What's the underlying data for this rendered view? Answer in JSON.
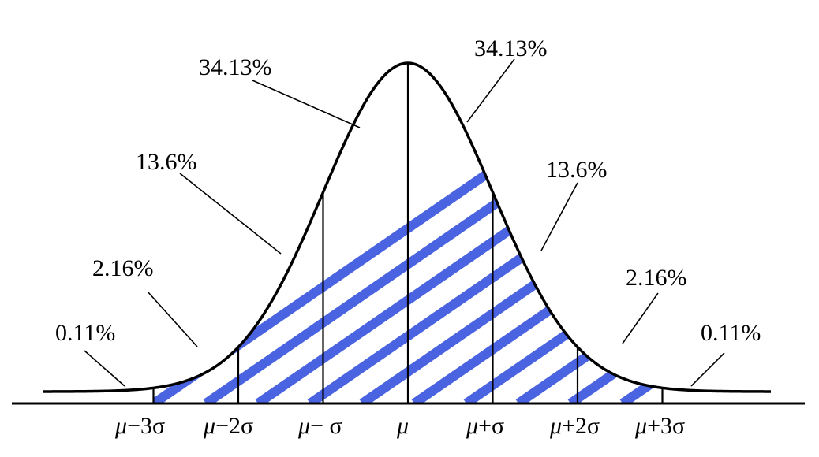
{
  "diagram": {
    "region_labels": [
      {
        "id": "left-tail",
        "text": "0.11%"
      },
      {
        "id": "left-2-3",
        "text": "2.16%"
      },
      {
        "id": "left-1-2",
        "text": "13.6%"
      },
      {
        "id": "left-0-1",
        "text": "34.13%"
      },
      {
        "id": "right-0-1",
        "text": "34.13%"
      },
      {
        "id": "right-1-2",
        "text": "13.6%"
      },
      {
        "id": "right-2-3",
        "text": "2.16%"
      },
      {
        "id": "right-tail",
        "text": "0.11%"
      }
    ],
    "axis_ticks": [
      {
        "id": "mu-minus-3sigma",
        "mu": "μ",
        "rest": "−3σ"
      },
      {
        "id": "mu-minus-2sigma",
        "mu": "μ",
        "rest": "−2σ"
      },
      {
        "id": "mu-minus-sigma",
        "mu": "μ",
        "rest": "− σ"
      },
      {
        "id": "mu",
        "mu": "μ",
        "rest": ""
      },
      {
        "id": "mu-plus-sigma",
        "mu": "μ",
        "rest": "+σ"
      },
      {
        "id": "mu-plus-2sigma",
        "mu": "μ",
        "rest": "+2σ"
      },
      {
        "id": "mu-plus-3sigma",
        "mu": "μ",
        "rest": "+3σ"
      }
    ],
    "colors": {
      "hatch": "#4a63e0",
      "line": "#000000",
      "background": "#ffffff"
    }
  }
}
